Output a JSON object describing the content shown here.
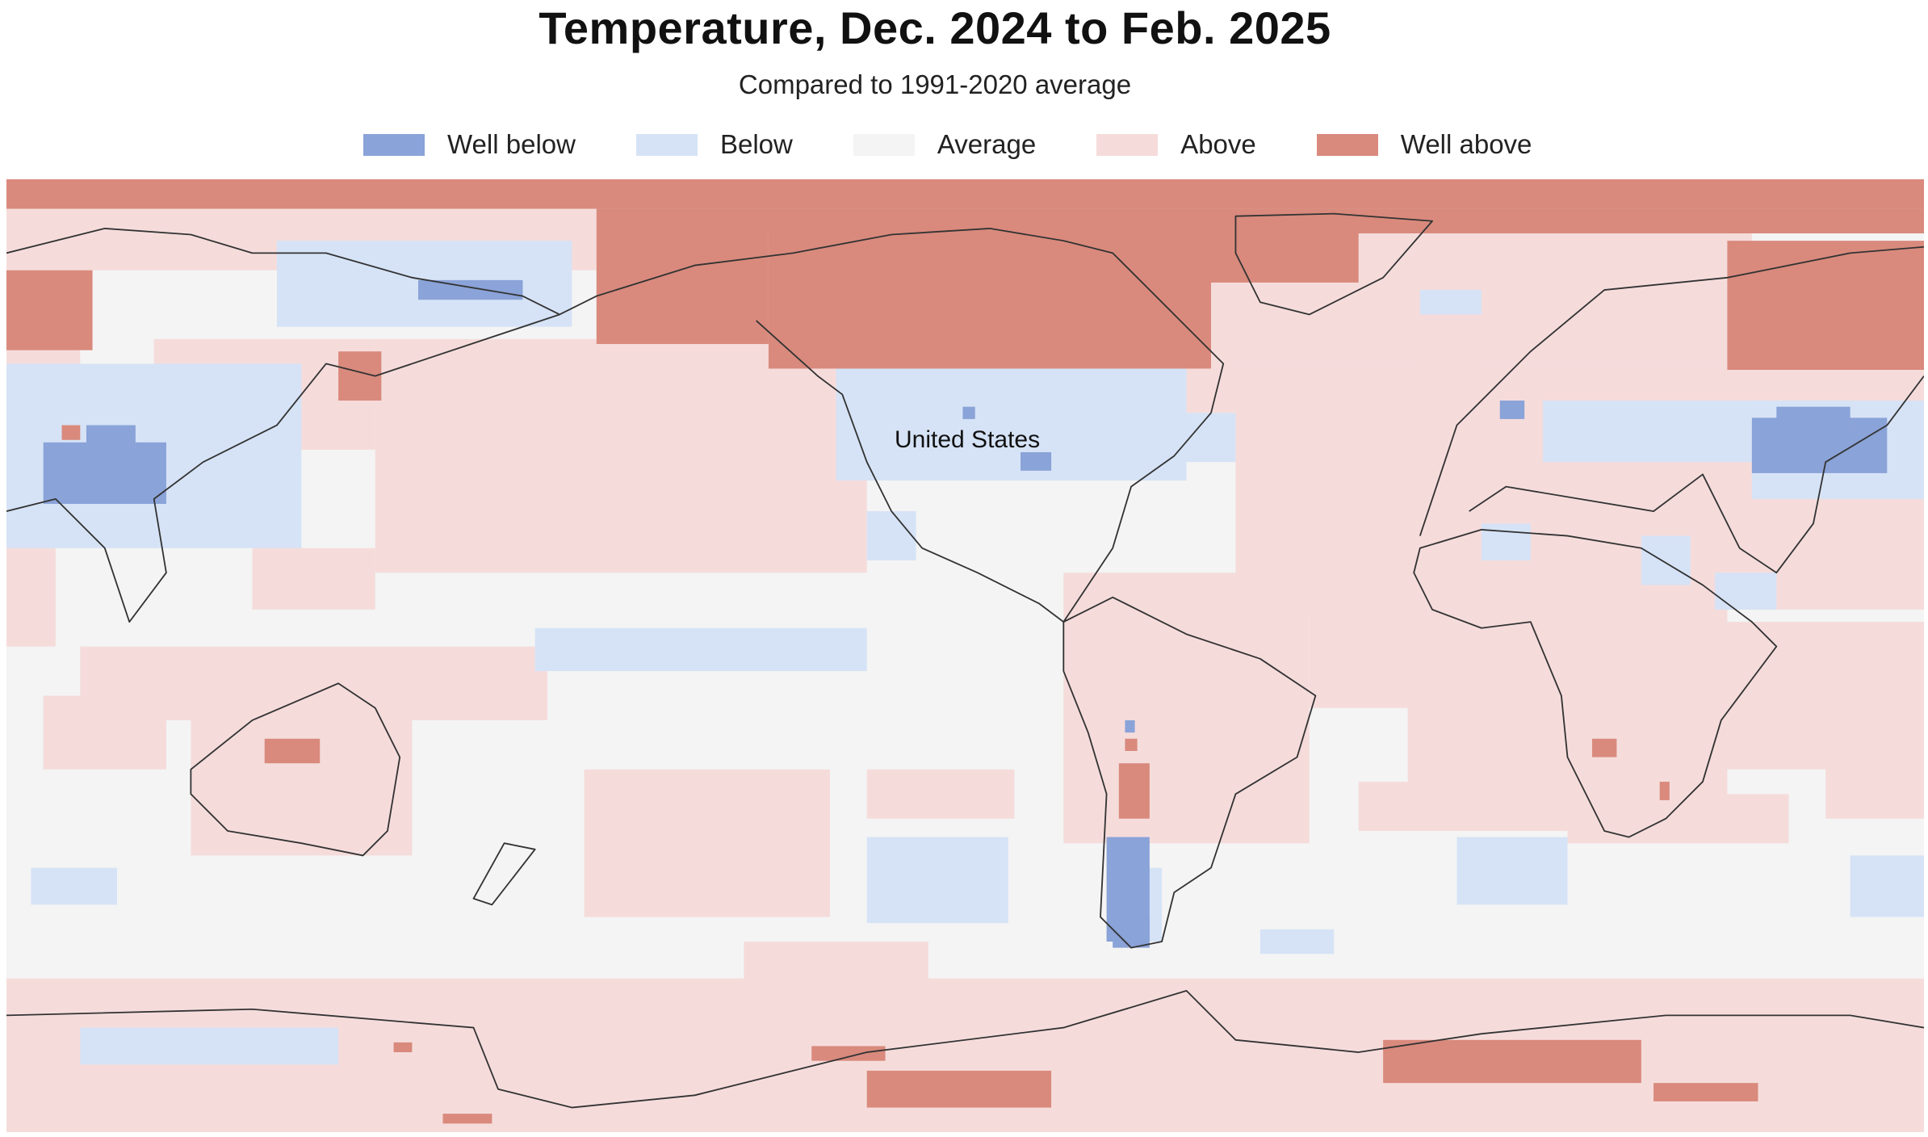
{
  "title": "Temperature, Dec. 2024 to Feb. 2025",
  "subtitle": "Compared to 1991-2020 average",
  "legend": [
    {
      "label": "Well below",
      "color": "#8aa3d8"
    },
    {
      "label": "Below",
      "color": "#d6e3f6"
    },
    {
      "label": "Average",
      "color": "#f4f4f4"
    },
    {
      "label": "Above",
      "color": "#f5dcdb"
    },
    {
      "label": "Well above",
      "color": "#d98a7d"
    }
  ],
  "map": {
    "type": "choropleth-grid",
    "projection": "equirectangular, Pacific-centered",
    "outline_color": "#333333",
    "labels": {
      "us": "United States"
    }
  }
}
